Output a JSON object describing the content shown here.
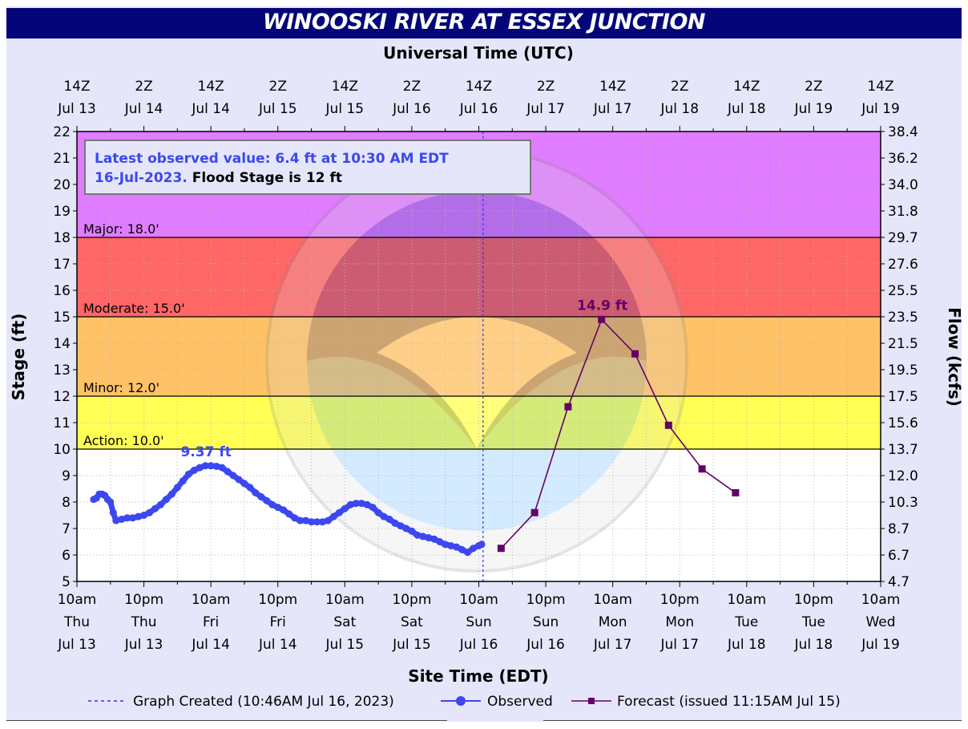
{
  "title": "WINOOSKI RIVER AT ESSEX JUNCTION",
  "top_axis_title": "Universal Time (UTC)",
  "bottom_axis_title": "Site Time (EDT)",
  "ylabel_left": "Stage (ft)",
  "ylabel_right": "Flow (kcfs)",
  "info_box": {
    "line1": "Latest observed value: 6.4 ft at 10:30 AM EDT",
    "line2_blue": "16-Jul-2023.",
    "line2_black": "Flood Stage is 12 ft"
  },
  "legend": {
    "created": "Graph Created (10:46AM Jul 16, 2023)",
    "observed": "Observed",
    "forecast": "Forecast (issued 11:15AM Jul 15)"
  },
  "chart_data": {
    "type": "line",
    "title": "WINOOSKI RIVER AT ESSEX JUNCTION",
    "xlabel": "Site Time (EDT)",
    "ylabel": "Stage (ft)",
    "ylabel_right": "Flow (kcfs)",
    "ylim": [
      5,
      22
    ],
    "xlim": [
      "2023-07-13 10:00",
      "2023-07-19 10:00"
    ],
    "grid": true,
    "legend_position": "bottom",
    "y_ticks": [
      5,
      6,
      7,
      8,
      9,
      10,
      11,
      12,
      13,
      14,
      15,
      16,
      17,
      18,
      19,
      20,
      21,
      22
    ],
    "right_ticks": [
      "4.7",
      "6.7",
      "8.7",
      "10.3",
      "12.0",
      "13.7",
      "15.6",
      "17.5",
      "19.5",
      "21.5",
      "23.5",
      "25.5",
      "27.6",
      "29.7",
      "31.8",
      "34.0",
      "36.2",
      "38.4"
    ],
    "bottom_ticks": [
      [
        "10am",
        "Thu",
        "Jul 13"
      ],
      [
        "10pm",
        "Thu",
        "Jul 13"
      ],
      [
        "10am",
        "Fri",
        "Jul 14"
      ],
      [
        "10pm",
        "Fri",
        "Jul 14"
      ],
      [
        "10am",
        "Sat",
        "Jul 15"
      ],
      [
        "10pm",
        "Sat",
        "Jul 15"
      ],
      [
        "10am",
        "Sun",
        "Jul 16"
      ],
      [
        "10pm",
        "Sun",
        "Jul 16"
      ],
      [
        "10am",
        "Mon",
        "Jul 17"
      ],
      [
        "10pm",
        "Mon",
        "Jul 17"
      ],
      [
        "10am",
        "Tue",
        "Jul 18"
      ],
      [
        "10pm",
        "Tue",
        "Jul 18"
      ],
      [
        "10am",
        "Wed",
        "Jul 19"
      ]
    ],
    "top_ticks": [
      [
        "14Z",
        "Jul 13"
      ],
      [
        "2Z",
        "Jul 14"
      ],
      [
        "14Z",
        "Jul 14"
      ],
      [
        "2Z",
        "Jul 15"
      ],
      [
        "14Z",
        "Jul 15"
      ],
      [
        "2Z",
        "Jul 16"
      ],
      [
        "14Z",
        "Jul 16"
      ],
      [
        "2Z",
        "Jul 17"
      ],
      [
        "14Z",
        "Jul 17"
      ],
      [
        "2Z",
        "Jul 18"
      ],
      [
        "14Z",
        "Jul 18"
      ],
      [
        "2Z",
        "Jul 19"
      ],
      [
        "14Z",
        "Jul 19"
      ]
    ],
    "flood_categories": [
      {
        "name": "Action",
        "label": "Action: 10.0'",
        "stage": 10,
        "color": "#ffff55"
      },
      {
        "name": "Minor",
        "label": "Minor: 12.0'",
        "stage": 12,
        "color": "#ffc266"
      },
      {
        "name": "Moderate",
        "label": "Moderate: 15.0'",
        "stage": 15,
        "color": "#ff6666"
      },
      {
        "name": "Major",
        "label": "Major: 18.0'",
        "stage": 18,
        "color": "#e07cff"
      }
    ],
    "graph_created": "2023-07-16 10:46",
    "peak_labels": [
      {
        "text": "9.37 ft",
        "series": "Observed",
        "x": "2023-07-14 09:00",
        "y": 9.37
      },
      {
        "text": "14.9 ft",
        "series": "Forecast",
        "x": "2023-07-17 08:00",
        "y": 14.9
      }
    ],
    "series": [
      {
        "name": "Observed",
        "color": "#3b48f0",
        "points": [
          [
            "2023-07-13 13:00",
            8.1
          ],
          [
            "2023-07-13 13:30",
            8.15
          ],
          [
            "2023-07-13 14:00",
            8.3
          ],
          [
            "2023-07-13 14:30",
            8.3
          ],
          [
            "2023-07-13 15:00",
            8.25
          ],
          [
            "2023-07-13 15:30",
            8.1
          ],
          [
            "2023-07-13 16:00",
            8.0
          ],
          [
            "2023-07-13 16:30",
            7.6
          ],
          [
            "2023-07-13 17:00",
            7.3
          ],
          [
            "2023-07-13 18:00",
            7.35
          ],
          [
            "2023-07-13 19:00",
            7.4
          ],
          [
            "2023-07-13 20:00",
            7.4
          ],
          [
            "2023-07-13 21:00",
            7.45
          ],
          [
            "2023-07-13 22:00",
            7.5
          ],
          [
            "2023-07-13 23:00",
            7.6
          ],
          [
            "2023-07-14 00:00",
            7.75
          ],
          [
            "2023-07-14 01:00",
            7.9
          ],
          [
            "2023-07-14 02:00",
            8.1
          ],
          [
            "2023-07-14 03:00",
            8.3
          ],
          [
            "2023-07-14 04:00",
            8.55
          ],
          [
            "2023-07-14 05:00",
            8.8
          ],
          [
            "2023-07-14 06:00",
            9.05
          ],
          [
            "2023-07-14 07:00",
            9.2
          ],
          [
            "2023-07-14 08:00",
            9.3
          ],
          [
            "2023-07-14 09:00",
            9.37
          ],
          [
            "2023-07-14 10:00",
            9.37
          ],
          [
            "2023-07-14 11:00",
            9.35
          ],
          [
            "2023-07-14 12:00",
            9.3
          ],
          [
            "2023-07-14 13:00",
            9.15
          ],
          [
            "2023-07-14 14:00",
            9.0
          ],
          [
            "2023-07-14 15:00",
            8.85
          ],
          [
            "2023-07-14 16:00",
            8.7
          ],
          [
            "2023-07-14 17:00",
            8.55
          ],
          [
            "2023-07-14 18:00",
            8.35
          ],
          [
            "2023-07-14 19:00",
            8.2
          ],
          [
            "2023-07-14 20:00",
            8.05
          ],
          [
            "2023-07-14 21:00",
            7.9
          ],
          [
            "2023-07-14 22:00",
            7.8
          ],
          [
            "2023-07-14 23:00",
            7.7
          ],
          [
            "2023-07-15 00:00",
            7.55
          ],
          [
            "2023-07-15 01:00",
            7.4
          ],
          [
            "2023-07-15 02:00",
            7.3
          ],
          [
            "2023-07-15 03:00",
            7.3
          ],
          [
            "2023-07-15 04:00",
            7.25
          ],
          [
            "2023-07-15 05:00",
            7.25
          ],
          [
            "2023-07-15 06:00",
            7.25
          ],
          [
            "2023-07-15 07:00",
            7.3
          ],
          [
            "2023-07-15 08:00",
            7.45
          ],
          [
            "2023-07-15 09:00",
            7.6
          ],
          [
            "2023-07-15 10:00",
            7.75
          ],
          [
            "2023-07-15 11:00",
            7.9
          ],
          [
            "2023-07-15 12:00",
            7.95
          ],
          [
            "2023-07-15 13:00",
            7.95
          ],
          [
            "2023-07-15 14:00",
            7.9
          ],
          [
            "2023-07-15 15:00",
            7.8
          ],
          [
            "2023-07-15 16:00",
            7.6
          ],
          [
            "2023-07-15 17:00",
            7.45
          ],
          [
            "2023-07-15 18:00",
            7.35
          ],
          [
            "2023-07-15 19:00",
            7.2
          ],
          [
            "2023-07-15 20:00",
            7.1
          ],
          [
            "2023-07-15 21:00",
            7.0
          ],
          [
            "2023-07-15 22:00",
            6.9
          ],
          [
            "2023-07-15 23:00",
            6.75
          ],
          [
            "2023-07-16 00:00",
            6.7
          ],
          [
            "2023-07-16 01:00",
            6.65
          ],
          [
            "2023-07-16 02:00",
            6.6
          ],
          [
            "2023-07-16 03:00",
            6.5
          ],
          [
            "2023-07-16 04:00",
            6.4
          ],
          [
            "2023-07-16 05:00",
            6.35
          ],
          [
            "2023-07-16 06:00",
            6.3
          ],
          [
            "2023-07-16 07:00",
            6.2
          ],
          [
            "2023-07-16 08:00",
            6.1
          ],
          [
            "2023-07-16 09:00",
            6.25
          ],
          [
            "2023-07-16 10:00",
            6.35
          ],
          [
            "2023-07-16 10:30",
            6.4
          ]
        ]
      },
      {
        "name": "Forecast",
        "color": "#660066",
        "points": [
          [
            "2023-07-16 14:00",
            6.25
          ],
          [
            "2023-07-16 20:00",
            7.6
          ],
          [
            "2023-07-17 02:00",
            11.6
          ],
          [
            "2023-07-17 08:00",
            14.9
          ],
          [
            "2023-07-17 14:00",
            13.6
          ],
          [
            "2023-07-17 20:00",
            10.9
          ],
          [
            "2023-07-18 02:00",
            9.25
          ],
          [
            "2023-07-18 08:00",
            8.35
          ]
        ]
      }
    ]
  }
}
